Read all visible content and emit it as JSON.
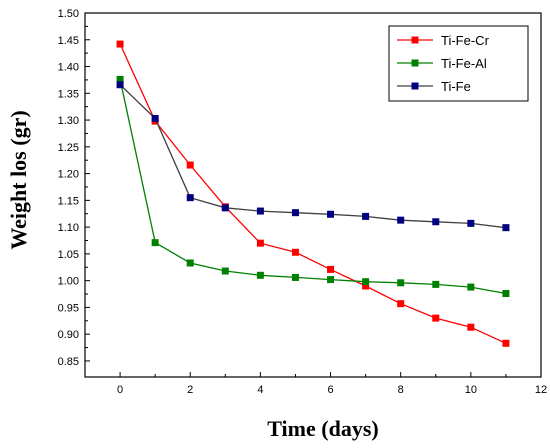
{
  "chart_data": {
    "type": "line",
    "title": "",
    "xlabel": "Time (days)",
    "ylabel": "Weight los (gr)",
    "xlim": [
      -1,
      12
    ],
    "ylim": [
      0.82,
      1.5
    ],
    "xticks": [
      0,
      2,
      4,
      6,
      8,
      10,
      12
    ],
    "yticks": [
      0.85,
      0.9,
      0.95,
      1.0,
      1.05,
      1.1,
      1.15,
      1.2,
      1.25,
      1.3,
      1.35,
      1.4,
      1.45,
      1.5
    ],
    "grid": false,
    "legend_position": "top-right",
    "series": [
      {
        "name": "Ti-Fe-Cr",
        "color": "#ff0000",
        "x": [
          0,
          1,
          2,
          3,
          4,
          5,
          6,
          7,
          8,
          9,
          10,
          11
        ],
        "y": [
          1.442,
          1.298,
          1.216,
          1.138,
          1.07,
          1.053,
          1.021,
          0.99,
          0.957,
          0.93,
          0.913,
          0.883
        ]
      },
      {
        "name": "Ti-Fe-Al",
        "color": "#008000",
        "x": [
          0,
          1,
          2,
          3,
          4,
          5,
          6,
          7,
          8,
          9,
          10,
          11
        ],
        "y": [
          1.376,
          1.071,
          1.033,
          1.018,
          1.01,
          1.006,
          1.002,
          0.998,
          0.996,
          0.993,
          0.988,
          0.976
        ]
      },
      {
        "name": "Ti-Fe",
        "color": "#000080",
        "line_color": "#404040",
        "x": [
          0,
          1,
          2,
          3,
          4,
          5,
          6,
          7,
          8,
          9,
          10,
          11
        ],
        "y": [
          1.366,
          1.303,
          1.155,
          1.136,
          1.13,
          1.127,
          1.124,
          1.12,
          1.113,
          1.11,
          1.107,
          1.099
        ]
      }
    ]
  }
}
